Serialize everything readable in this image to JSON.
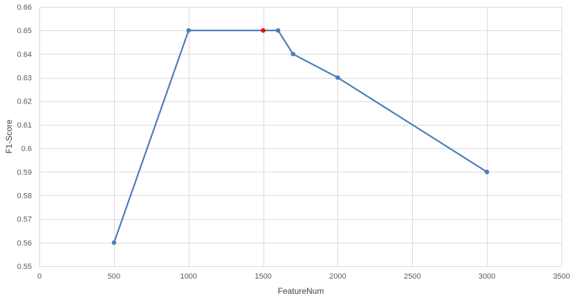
{
  "chart_data": {
    "type": "line",
    "title": "",
    "xlabel": "FeatureNum",
    "ylabel": "F1-Score",
    "xlim": [
      0,
      3500
    ],
    "ylim": [
      0.55,
      0.66
    ],
    "x_ticks": [
      "0",
      "500",
      "1000",
      "1500",
      "2000",
      "2500",
      "3000",
      "3500"
    ],
    "y_ticks": [
      "0.55",
      "0.56",
      "0.57",
      "0.58",
      "0.59",
      "0.6",
      "0.61",
      "0.62",
      "0.63",
      "0.64",
      "0.65",
      "0.66"
    ],
    "grid": true,
    "legend": "none",
    "series": [
      {
        "color": "#4a7ebb",
        "x": [
          500,
          1000,
          1500,
          1600,
          1700,
          2000,
          3000
        ],
        "y": [
          0.56,
          0.65,
          0.65,
          0.65,
          0.64,
          0.63,
          0.59
        ]
      }
    ],
    "highlight": {
      "x": 1500,
      "y": 0.65,
      "color": "#ff0000"
    }
  }
}
